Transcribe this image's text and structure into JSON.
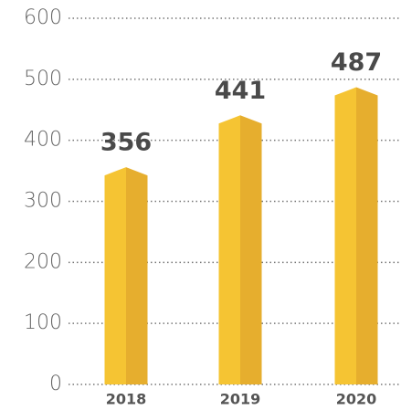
{
  "chart_data": {
    "type": "bar",
    "categories": [
      "2018",
      "2019",
      "2020"
    ],
    "values": [
      356,
      441,
      487
    ],
    "color": "#f5c433",
    "shade_color": "#e6ae2e",
    "ylim": [
      0,
      600
    ],
    "yticks": [
      0,
      100,
      200,
      300,
      400,
      500,
      600
    ],
    "grid": true
  }
}
